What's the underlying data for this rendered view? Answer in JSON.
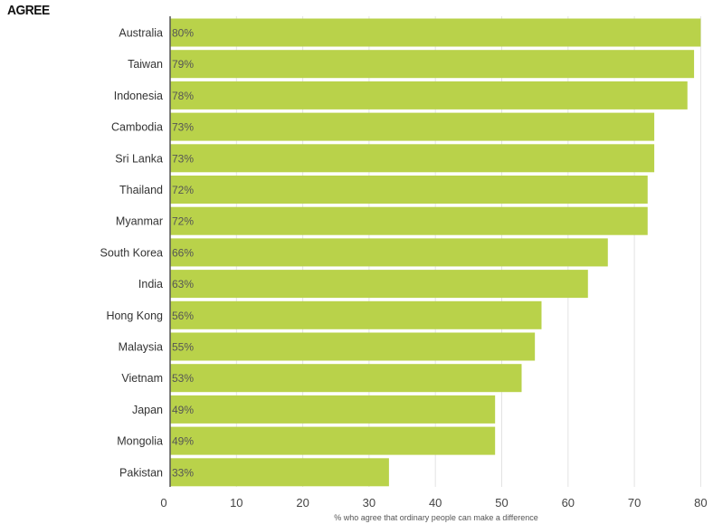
{
  "chart_data": {
    "type": "bar",
    "orientation": "horizontal",
    "title": "AGREE",
    "xlabel": "% who agree that ordinary people can make a difference",
    "ylabel": "",
    "categories": [
      "Australia",
      "Taiwan",
      "Indonesia",
      "Cambodia",
      "Sri Lanka",
      "Thailand",
      "Myanmar",
      "South Korea",
      "India",
      "Hong Kong",
      "Malaysia",
      "Vietnam",
      "Japan",
      "Mongolia",
      "Pakistan"
    ],
    "values": [
      80,
      79,
      78,
      73,
      73,
      72,
      72,
      66,
      63,
      56,
      55,
      53,
      49,
      49,
      33
    ],
    "data_labels": [
      "80%",
      "79%",
      "78%",
      "73%",
      "73%",
      "72%",
      "72%",
      "66%",
      "63%",
      "56%",
      "55%",
      "53%",
      "49%",
      "49%",
      "33%"
    ],
    "xlim": [
      0,
      81
    ],
    "xticks": [
      0,
      10,
      20,
      30,
      40,
      50,
      60,
      70,
      80
    ],
    "grid": "vertical",
    "legend": "none",
    "bar_color": "#b9d24a"
  }
}
